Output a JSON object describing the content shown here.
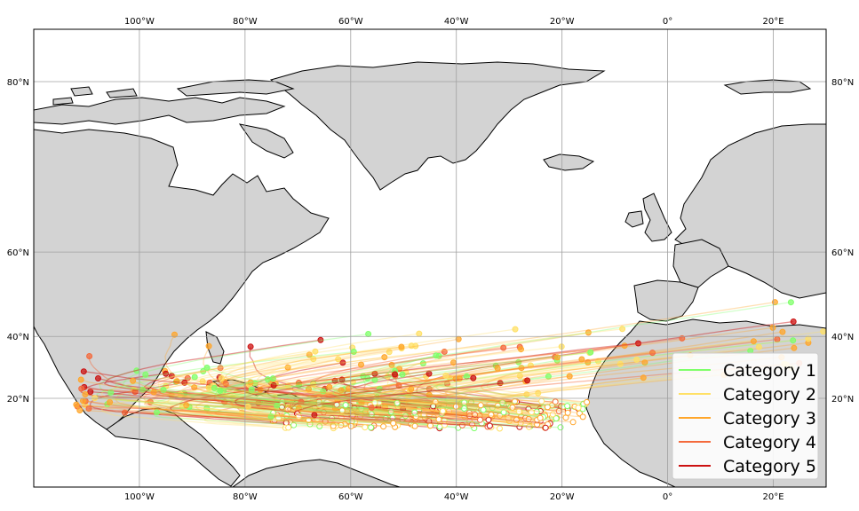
{
  "map": {
    "lon_range": [
      -120,
      30
    ],
    "lat_range": [
      3,
      90
    ],
    "land_color": "#d3d3d3",
    "ocean_color": "#ffffff",
    "gridlines": true,
    "lon_ticks": [
      {
        "value": -100,
        "label": "100°W"
      },
      {
        "value": -80,
        "label": "80°W"
      },
      {
        "value": -60,
        "label": "60°W"
      },
      {
        "value": -40,
        "label": "40°W"
      },
      {
        "value": -20,
        "label": "20°W"
      },
      {
        "value": 0,
        "label": "0°"
      },
      {
        "value": 20,
        "label": "20°E"
      }
    ],
    "lat_ticks": [
      {
        "value": 20,
        "label": "20°N"
      },
      {
        "value": 40,
        "label": "40°N"
      },
      {
        "value": 60,
        "label": "60°N"
      },
      {
        "value": 80,
        "label": "80°N"
      }
    ]
  },
  "legend": {
    "placement": "bottom-right",
    "entries": [
      {
        "label": "Category 1",
        "color": "#7fff6a"
      },
      {
        "label": "Category 2",
        "color": "#ffe066"
      },
      {
        "label": "Category 3",
        "color": "#ffa62b"
      },
      {
        "label": "Category 4",
        "color": "#f46a3c"
      },
      {
        "label": "Category 5",
        "color": "#cc1111"
      }
    ]
  }
}
